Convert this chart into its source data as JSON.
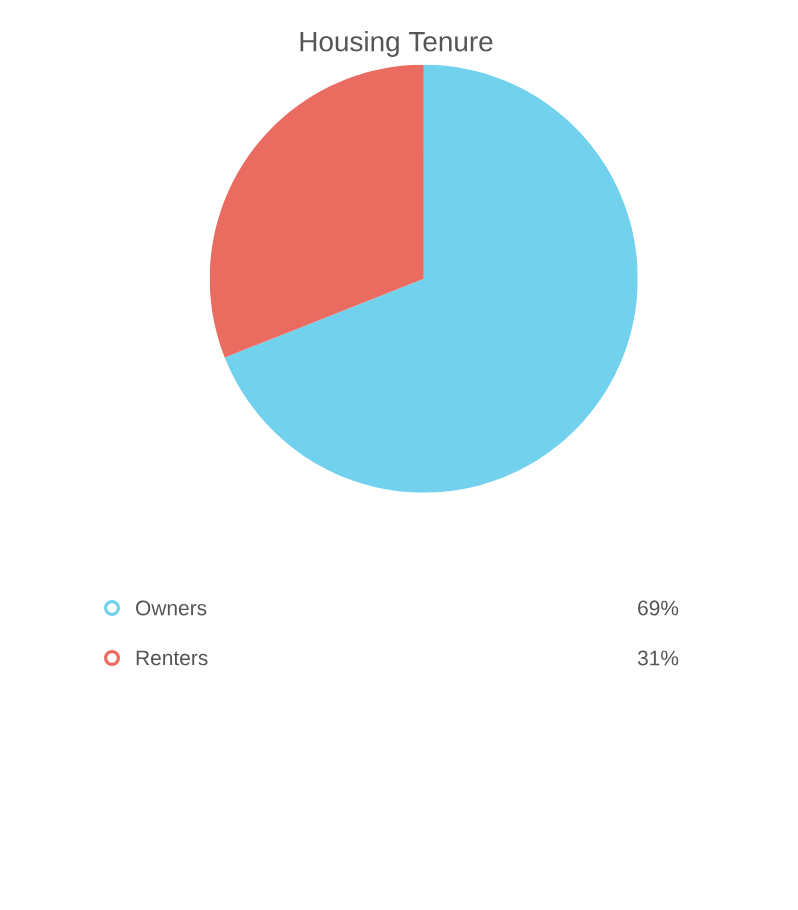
{
  "chart_data": {
    "type": "pie",
    "title": "Housing Tenure",
    "categories": [
      "Owners",
      "Renters"
    ],
    "values": [
      69,
      31
    ],
    "value_labels": [
      "69%",
      "31%"
    ],
    "colors": [
      "#72d2ee",
      "#ea6b60"
    ],
    "legend": "bottom"
  }
}
